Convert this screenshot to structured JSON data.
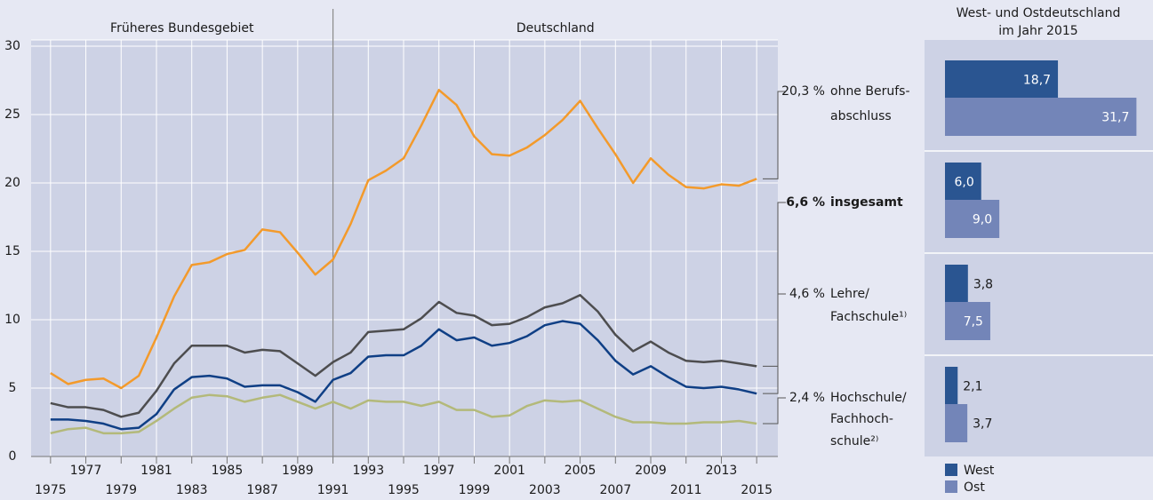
{
  "chart_data": [
    {
      "type": "line",
      "regions": [
        "Früheres Bundesgebiet",
        "Deutschland"
      ],
      "divider": 1991,
      "x": [
        1975,
        1976,
        1977,
        1978,
        1979,
        1980,
        1981,
        1982,
        1983,
        1984,
        1985,
        1986,
        1987,
        1988,
        1989,
        1990,
        1991,
        1992,
        1993,
        1994,
        1995,
        1996,
        1997,
        1998,
        1999,
        2000,
        2001,
        2002,
        2003,
        2004,
        2005,
        2006,
        2007,
        2008,
        2009,
        2010,
        2011,
        2012,
        2013,
        2014,
        2015
      ],
      "xlim": [
        1973.9,
        2016.2
      ],
      "xticks": [
        1975,
        1977,
        1979,
        1981,
        1983,
        1985,
        1987,
        1989,
        1991,
        1993,
        1995,
        1997,
        1999,
        2001,
        2003,
        2005,
        2007,
        2009,
        2011,
        2013,
        2015
      ],
      "ylim": [
        0,
        30
      ],
      "yticks": [
        0,
        5,
        10,
        15,
        20,
        25,
        30
      ],
      "grid": true,
      "series": [
        {
          "name": [
            "ohne Berufs-",
            "abschluss"
          ],
          "end_label": "20,3 %",
          "color": "#f39a2b",
          "values": [
            6.1,
            5.3,
            5.6,
            5.7,
            5.0,
            5.9,
            8.7,
            11.7,
            14.0,
            14.2,
            14.8,
            15.1,
            16.6,
            16.4,
            14.9,
            13.3,
            14.4,
            17.0,
            20.2,
            20.9,
            21.8,
            24.2,
            26.8,
            25.7,
            23.4,
            22.1,
            22.0,
            22.6,
            23.5,
            24.6,
            26.0,
            24.0,
            22.1,
            20.0,
            21.8,
            20.6,
            19.7,
            19.6,
            19.9,
            19.8,
            20.3
          ]
        },
        {
          "name": [
            "insgesamt"
          ],
          "end_label": "6,6 %",
          "bold": true,
          "color": "#4d4d4f",
          "values": [
            3.9,
            3.6,
            3.6,
            3.4,
            2.9,
            3.2,
            4.8,
            6.8,
            8.1,
            8.1,
            8.1,
            7.6,
            7.8,
            7.7,
            6.8,
            5.9,
            6.9,
            7.6,
            9.1,
            9.2,
            9.3,
            10.1,
            11.3,
            10.5,
            10.3,
            9.6,
            9.7,
            10.2,
            10.9,
            11.2,
            11.8,
            10.6,
            8.9,
            7.7,
            8.4,
            7.6,
            7.0,
            6.9,
            7.0,
            6.8,
            6.6
          ]
        },
        {
          "name": [
            "Lehre/",
            "Fachschule¹⁾"
          ],
          "end_label": "4,6 %",
          "color": "#0f3f85",
          "values": [
            2.7,
            2.7,
            2.6,
            2.4,
            2.0,
            2.1,
            3.1,
            4.9,
            5.8,
            5.9,
            5.7,
            5.1,
            5.2,
            5.2,
            4.7,
            4.0,
            5.6,
            6.1,
            7.3,
            7.4,
            7.4,
            8.1,
            9.3,
            8.5,
            8.7,
            8.1,
            8.3,
            8.8,
            9.6,
            9.9,
            9.7,
            8.5,
            7.0,
            6.0,
            6.6,
            5.8,
            5.1,
            5.0,
            5.1,
            4.9,
            4.6
          ]
        },
        {
          "name": [
            "Hochschule/",
            "Fachhoch-",
            "schule²⁾"
          ],
          "end_label": "2,4 %",
          "color": "#b3b97a",
          "values": [
            1.7,
            2.0,
            2.1,
            1.7,
            1.7,
            1.8,
            2.6,
            3.5,
            4.3,
            4.5,
            4.4,
            4.0,
            4.3,
            4.5,
            4.0,
            3.5,
            4.0,
            3.5,
            4.1,
            4.0,
            4.0,
            3.7,
            4.0,
            3.4,
            3.4,
            2.9,
            3.0,
            3.7,
            4.1,
            4.0,
            4.1,
            3.5,
            2.9,
            2.5,
            2.5,
            2.4,
            2.4,
            2.5,
            2.5,
            2.6,
            2.4
          ]
        }
      ]
    },
    {
      "type": "hbar",
      "title": [
        "West- und Ostdeutschland",
        "im Jahr 2015"
      ],
      "xlim": [
        0,
        34
      ],
      "series": [
        {
          "name": "West",
          "color": "#2a5591",
          "values": [
            18.7,
            6.0,
            3.8,
            2.1
          ],
          "value_labels": [
            "18,7",
            "6,0",
            "3,8",
            "2,1"
          ]
        },
        {
          "name": "Ost",
          "color": "#7385b8",
          "values": [
            31.7,
            9.0,
            7.5,
            3.7
          ],
          "value_labels": [
            "31,7",
            "9,0",
            "7,5",
            "3,7"
          ]
        }
      ]
    }
  ]
}
